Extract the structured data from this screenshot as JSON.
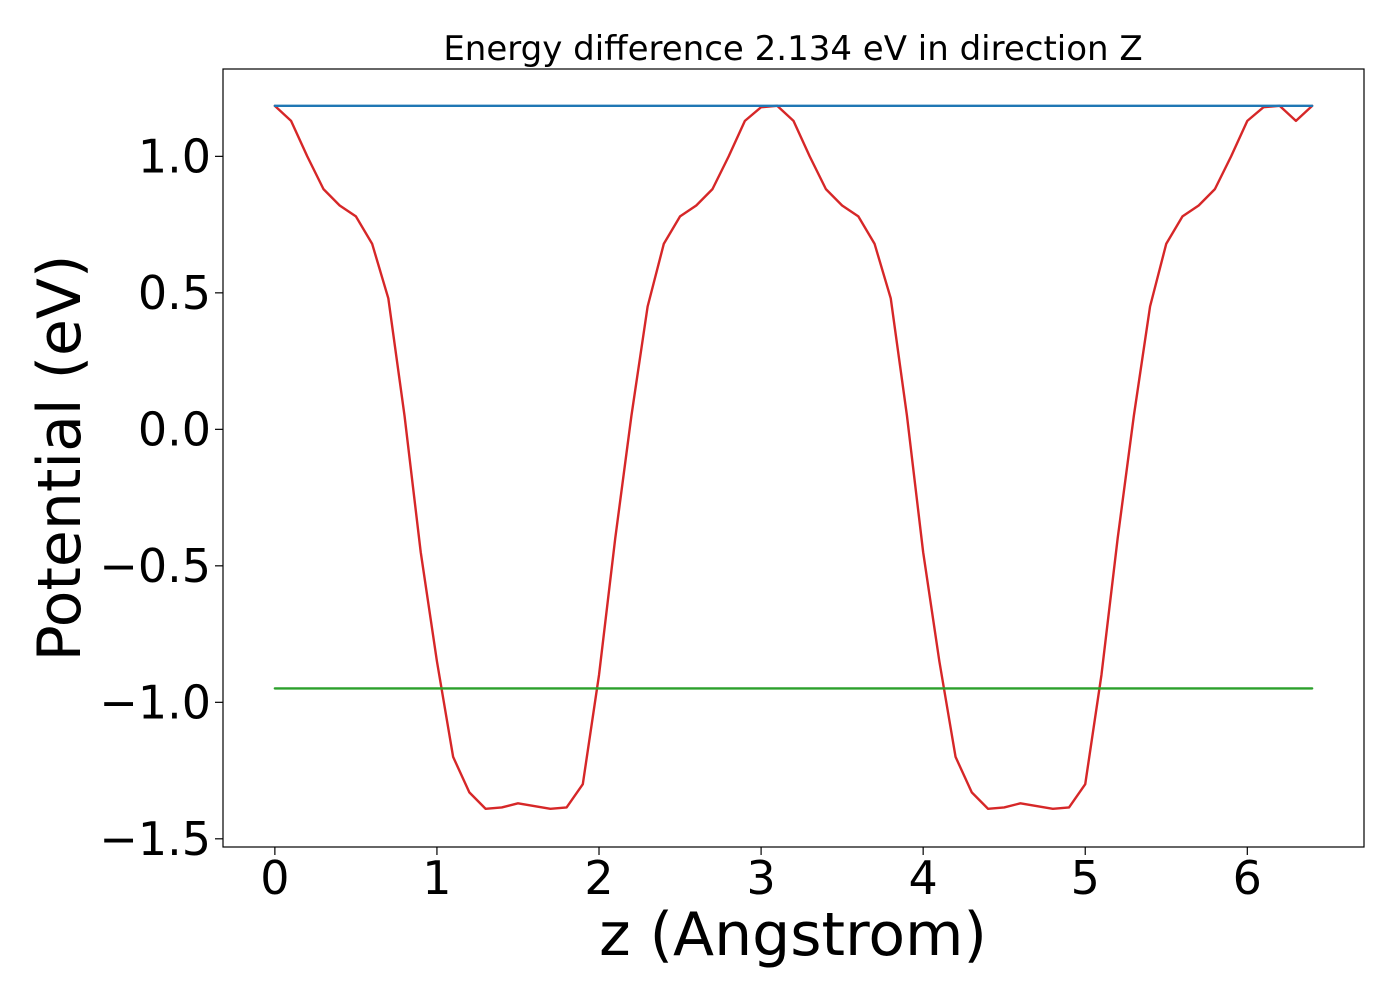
{
  "chart_data": {
    "type": "line",
    "title": "Energy difference 2.134 eV in direction Z",
    "xlabel": "z (Angstrom)",
    "ylabel": "Potential (eV)",
    "xlim": [
      -0.32,
      6.72
    ],
    "ylim": [
      -1.53,
      1.32
    ],
    "xticks": [
      0,
      1,
      2,
      3,
      4,
      5,
      6
    ],
    "xtick_labels": [
      "0",
      "1",
      "2",
      "3",
      "4",
      "5",
      "6"
    ],
    "yticks": [
      1.0,
      0.5,
      0.0,
      -0.5,
      -1.0,
      -1.5
    ],
    "ytick_labels": [
      "1.0",
      "0.5",
      "0.0",
      "−0.5",
      "−1.0",
      "−1.5"
    ],
    "grid": false,
    "series": [
      {
        "color": "#d62728",
        "x": [
          0.0,
          0.1,
          0.2,
          0.3,
          0.4,
          0.5,
          0.6,
          0.7,
          0.8,
          0.9,
          1.0,
          1.1,
          1.2,
          1.3,
          1.4,
          1.5,
          1.6,
          1.7,
          1.8,
          1.9,
          2.0,
          2.1,
          2.2,
          2.3,
          2.4,
          2.5,
          2.6,
          2.7,
          2.8,
          2.9,
          3.0,
          3.1,
          3.2,
          3.3,
          3.4,
          3.5,
          3.6,
          3.7,
          3.8,
          3.9,
          4.0,
          4.1,
          4.2,
          4.3,
          4.4,
          4.5,
          4.6,
          4.7,
          4.8,
          4.9,
          5.0,
          5.1,
          5.2,
          5.3,
          5.4,
          5.5,
          5.6,
          5.7,
          5.8,
          5.9,
          6.0,
          6.1,
          6.2,
          6.3,
          6.4
        ],
        "y": [
          1.185,
          1.13,
          1.0,
          0.88,
          0.82,
          0.78,
          0.68,
          0.48,
          0.05,
          -0.45,
          -0.85,
          -1.2,
          -1.33,
          -1.39,
          -1.385,
          -1.37,
          -1.38,
          -1.39,
          -1.385,
          -1.3,
          -0.9,
          -0.4,
          0.05,
          0.45,
          0.68,
          0.78,
          0.82,
          0.88,
          1.0,
          1.13,
          1.18,
          1.185,
          1.13,
          1.0,
          0.88,
          0.82,
          0.78,
          0.68,
          0.48,
          0.05,
          -0.45,
          -0.85,
          -1.2,
          -1.33,
          -1.39,
          -1.385,
          -1.37,
          -1.38,
          -1.39,
          -1.385,
          -1.3,
          -0.9,
          -0.4,
          0.05,
          0.45,
          0.68,
          0.78,
          0.82,
          0.88,
          1.0,
          1.13,
          1.18,
          1.185,
          1.13,
          1.185
        ]
      },
      {
        "color": "#1f77b4",
        "x": [
          0.0,
          6.4
        ],
        "y": [
          1.185,
          1.185
        ]
      },
      {
        "color": "#2ca02c",
        "x": [
          0.0,
          6.4
        ],
        "y": [
          -0.949,
          -0.949
        ]
      }
    ]
  }
}
